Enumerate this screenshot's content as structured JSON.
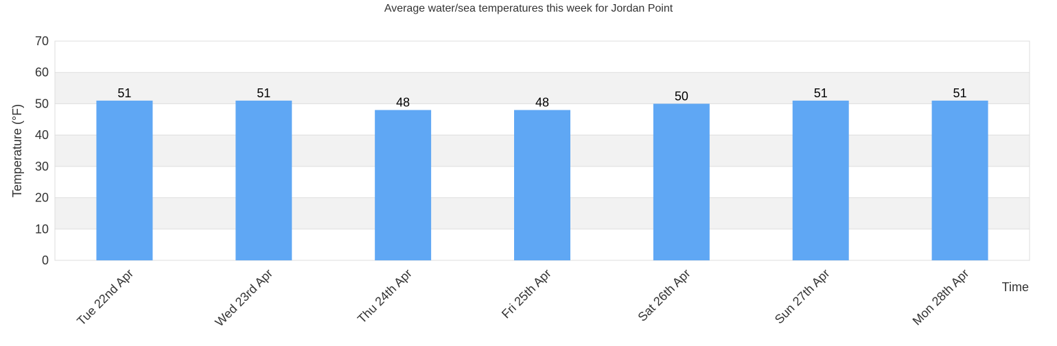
{
  "chart_data": {
    "type": "bar",
    "title": "Average water/sea temperatures this week for Jordan Point",
    "xlabel": "Time",
    "ylabel": "Temperature (°F)",
    "categories": [
      "Tue 22nd Apr",
      "Wed 23rd Apr",
      "Thu 24th Apr",
      "Fri 25th Apr",
      "Sat 26th Apr",
      "Sun 27th Apr",
      "Mon 28th Apr"
    ],
    "values": [
      51,
      51,
      48,
      48,
      50,
      51,
      51
    ],
    "ylim": [
      0,
      70
    ],
    "yticks": [
      0,
      10,
      20,
      30,
      40,
      50,
      60,
      70
    ],
    "grid": true,
    "legend": "none",
    "colors": {
      "bar": "#5fa7f4",
      "band": "#f2f2f2",
      "gridline": "#dddddd",
      "text": "#333333"
    }
  }
}
